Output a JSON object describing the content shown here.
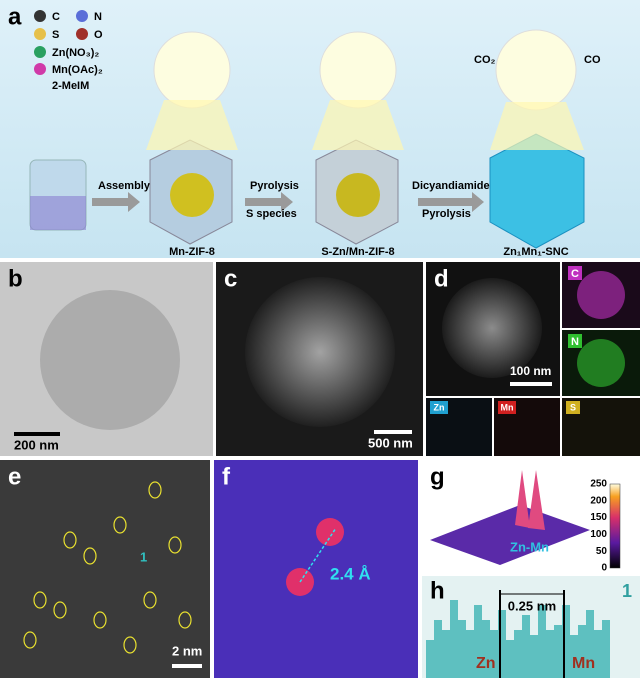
{
  "panel_a": {
    "label": "a",
    "legend": [
      "C",
      "N",
      "S",
      "O",
      "Zn(NO₃)₂",
      "Mn(OAc)₂",
      "2-MeIM"
    ],
    "steps": [
      "Assembly",
      "Pyrolysis",
      "S species",
      "Dicyandiamide",
      "Pyrolysis"
    ],
    "products": [
      "Mn-ZIF-8",
      "S-Zn/Mn-ZIF-8",
      "Zn₁Mn₁-SNC"
    ],
    "gases": [
      "CO₂",
      "CO"
    ]
  },
  "panel_b": {
    "label": "b",
    "scale": "200 nm"
  },
  "panel_c": {
    "label": "c",
    "scale": "500 nm"
  },
  "panel_d": {
    "label": "d",
    "scale": "100 nm",
    "elements": [
      "C",
      "N",
      "Zn",
      "Mn",
      "S"
    ]
  },
  "panel_e": {
    "label": "e",
    "scale": "2 nm",
    "marker": "1"
  },
  "panel_f": {
    "label": "f",
    "distance": "2.4 Å"
  },
  "panel_g": {
    "label": "g",
    "annotation": "Zn-Mn",
    "colorbar_ticks": [
      0,
      50,
      100,
      150,
      200,
      250
    ]
  },
  "panel_h": {
    "label": "h",
    "distance": "0.25 nm",
    "marker": "1",
    "left": "Zn",
    "right": "Mn"
  }
}
